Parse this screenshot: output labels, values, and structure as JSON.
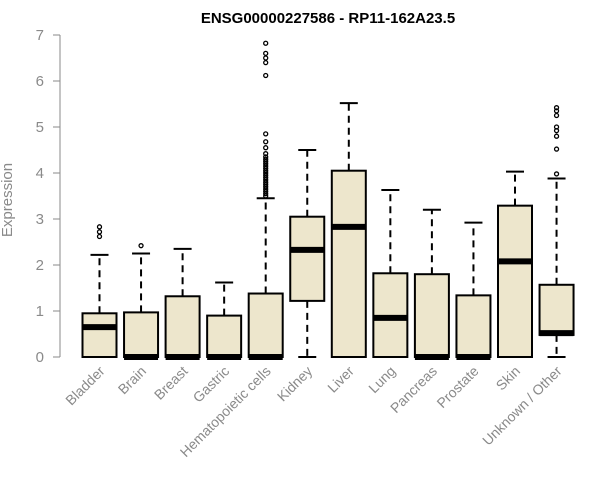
{
  "chart_data": {
    "type": "box",
    "title": "ENSG00000227586 - RP11-162A23.5",
    "xlabel": "",
    "ylabel": "Expression",
    "ylim": [
      0,
      7
    ],
    "yticks": [
      0,
      1,
      2,
      3,
      4,
      5,
      6,
      7
    ],
    "grid": false,
    "colors": {
      "box_fill": "#ede6cc",
      "box_stroke": "#000000",
      "axis": "#8a8a8a"
    },
    "categories": [
      "Bladder",
      "Brain",
      "Breast",
      "Gastric",
      "Hematopoietic cells",
      "Kidney",
      "Liver",
      "Lung",
      "Pancreas",
      "Prostate",
      "Skin",
      "Unknown / Other"
    ],
    "boxes": [
      {
        "q1": 0,
        "median": 0.65,
        "q3": 0.95,
        "whisker_low": 0,
        "whisker_high": 2.22,
        "outliers": [
          2.62,
          2.72,
          2.83
        ]
      },
      {
        "q1": 0,
        "median": 0,
        "q3": 0.97,
        "whisker_low": 0,
        "whisker_high": 2.25,
        "outliers": [
          2.42
        ]
      },
      {
        "q1": 0,
        "median": 0,
        "q3": 1.32,
        "whisker_low": 0,
        "whisker_high": 2.35,
        "outliers": []
      },
      {
        "q1": 0,
        "median": 0,
        "q3": 0.9,
        "whisker_low": 0,
        "whisker_high": 1.62,
        "outliers": []
      },
      {
        "q1": 0,
        "median": 0,
        "q3": 1.38,
        "whisker_low": 0,
        "whisker_high": 3.45,
        "outliers": [
          3.5,
          3.55,
          3.6,
          3.65,
          3.7,
          3.75,
          3.8,
          3.85,
          3.9,
          3.95,
          4.0,
          4.05,
          4.1,
          4.15,
          4.2,
          4.25,
          4.3,
          4.35,
          4.42,
          4.55,
          4.68,
          4.85,
          6.12,
          6.4,
          6.5,
          6.6,
          6.82
        ]
      },
      {
        "q1": 1.22,
        "median": 2.33,
        "q3": 3.05,
        "whisker_low": 0,
        "whisker_high": 4.5,
        "outliers": []
      },
      {
        "q1": 0,
        "median": 2.83,
        "q3": 4.05,
        "whisker_low": 0,
        "whisker_high": 5.52,
        "outliers": []
      },
      {
        "q1": 0,
        "median": 0.85,
        "q3": 1.82,
        "whisker_low": 0,
        "whisker_high": 3.63,
        "outliers": []
      },
      {
        "q1": 0,
        "median": 0,
        "q3": 1.8,
        "whisker_low": 0,
        "whisker_high": 3.2,
        "outliers": []
      },
      {
        "q1": 0,
        "median": 0,
        "q3": 1.34,
        "whisker_low": 0,
        "whisker_high": 2.92,
        "outliers": []
      },
      {
        "q1": 0,
        "median": 2.08,
        "q3": 3.29,
        "whisker_low": 0,
        "whisker_high": 4.03,
        "outliers": []
      },
      {
        "q1": 0.48,
        "median": 0.52,
        "q3": 1.57,
        "whisker_low": 0,
        "whisker_high": 3.88,
        "outliers": [
          3.98,
          4.52,
          4.8,
          4.92,
          5.0,
          5.25,
          5.35,
          5.42
        ]
      }
    ]
  }
}
